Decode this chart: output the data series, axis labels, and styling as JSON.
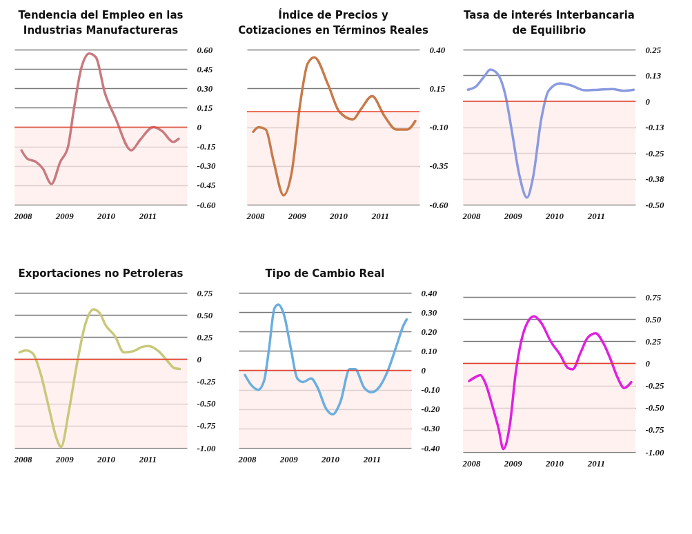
{
  "chart_data": [
    {
      "type": "line",
      "title": "Tendencia del Empleo en las Industrias Manufactureras",
      "x": [
        2007.97,
        2008.11,
        2008.32,
        2008.48,
        2008.69,
        2008.9,
        2009.09,
        2009.22,
        2009.41,
        2009.6,
        2009.76,
        2009.97,
        2010.23,
        2010.61,
        2010.82,
        2011.14,
        2011.35,
        2011.62,
        2011.75
      ],
      "series": [
        {
          "color": "#c97a7f",
          "values": [
            -0.18,
            -0.245,
            -0.27,
            -0.32,
            -0.44,
            -0.27,
            -0.15,
            0.12,
            0.46,
            0.57,
            0.54,
            0.27,
            0.07,
            -0.18,
            -0.1,
            0.0,
            -0.03,
            -0.115,
            -0.09
          ]
        }
      ],
      "xlim": [
        2007.8,
        2011.95
      ],
      "xticks": [
        2008,
        2009,
        2010,
        2011
      ],
      "ylim": [
        -0.6,
        0.6
      ],
      "yticks": [
        {
          "value": 0.6,
          "label": "0.60"
        },
        0.45,
        {
          "value": 0.3,
          "label": "0.30"
        },
        0.15,
        0,
        -0.15,
        {
          "value": -0.3,
          "label": "-0.30"
        },
        -0.45,
        {
          "value": -0.6,
          "label": "-0.60"
        }
      ],
      "grid": "y",
      "ref_lines": [
        {
          "axis": "y",
          "value": 0,
          "color": "#e8402a"
        }
      ],
      "bands": [
        {
          "axis": "y",
          "from": -0.6,
          "to": 0,
          "color": "#fdecea"
        }
      ]
    },
    {
      "type": "line",
      "title": "Índice de Precios y Cotizaciones en Términos Reales",
      "x": [
        2007.95,
        2008.08,
        2008.25,
        2008.44,
        2008.68,
        2008.87,
        2009.09,
        2009.26,
        2009.42,
        2009.75,
        2010.02,
        2010.35,
        2010.54,
        2010.81,
        2011.11,
        2011.39,
        2011.66,
        2011.85
      ],
      "series": [
        {
          "color": "#c77a4a",
          "values": [
            -0.13,
            -0.1,
            -0.115,
            -0.32,
            -0.54,
            -0.4,
            0.07,
            0.31,
            0.35,
            0.175,
            0.0,
            -0.05,
            0.015,
            0.1,
            -0.03,
            -0.115,
            -0.115,
            -0.06
          ]
        }
      ],
      "xlim": [
        2007.8,
        2011.95
      ],
      "xticks": [
        2008,
        2009,
        2010,
        2011
      ],
      "ylim": [
        -0.6,
        0.4
      ],
      "yticks": [
        {
          "value": 0.4,
          "label": "0.40"
        },
        0.15,
        {
          "value": -0.1,
          "label": "-0.10"
        },
        -0.35,
        {
          "value": -0.6,
          "label": "-0.60"
        }
      ],
      "grid": "y",
      "ref_lines": [
        {
          "axis": "y",
          "value": 0,
          "color": "#e8402a"
        }
      ],
      "bands": [
        {
          "axis": "y",
          "from": -0.6,
          "to": 0,
          "color": "#fdecea"
        }
      ]
    },
    {
      "type": "line",
      "title": "Tasa de interés Interbancaria de Equilibrio",
      "x": [
        2007.92,
        2008.11,
        2008.3,
        2008.46,
        2008.63,
        2008.82,
        2008.98,
        2009.15,
        2009.34,
        2009.48,
        2009.69,
        2009.86,
        2010.13,
        2010.4,
        2010.73,
        2011.06,
        2011.39,
        2011.66,
        2011.91
      ],
      "series": [
        {
          "color": "#8a9ae0",
          "values": [
            0.056,
            0.071,
            0.117,
            0.153,
            0.133,
            0.031,
            -0.148,
            -0.35,
            -0.466,
            -0.375,
            -0.08,
            0.051,
            0.087,
            0.077,
            0.053,
            0.056,
            0.059,
            0.051,
            0.056
          ]
        }
      ],
      "xlim": [
        2007.8,
        2011.95
      ],
      "xticks": [
        2008,
        2009,
        2010,
        2011
      ],
      "ylim": [
        -0.5,
        0.25
      ],
      "yticks": [
        0.25,
        {
          "value": 0.125,
          "label": "0.13"
        },
        0,
        {
          "value": -0.125,
          "label": "-0.13"
        },
        -0.25,
        {
          "value": -0.375,
          "label": "-0.38"
        },
        {
          "value": -0.5,
          "label": "-0.50"
        }
      ],
      "grid": "y",
      "ref_lines": [
        {
          "axis": "y",
          "value": 0,
          "color": "#e8402a"
        }
      ],
      "bands": [
        {
          "axis": "y",
          "from": -0.5,
          "to": 0,
          "color": "#fdecea"
        }
      ]
    },
    {
      "type": "line",
      "title": "Exportaciones no Petroleras",
      "x": [
        2007.92,
        2008.08,
        2008.24,
        2008.43,
        2008.62,
        2008.81,
        2008.92,
        2009.11,
        2009.3,
        2009.51,
        2009.7,
        2009.84,
        2010.0,
        2010.22,
        2010.43,
        2010.65,
        2010.86,
        2011.03,
        2011.27,
        2011.46,
        2011.65,
        2011.78
      ],
      "series": [
        {
          "color": "#c8c87a",
          "values": [
            0.078,
            0.1,
            0.066,
            -0.164,
            -0.53,
            -0.89,
            -0.99,
            -0.58,
            -0.06,
            0.405,
            0.563,
            0.527,
            0.38,
            0.26,
            0.078,
            0.09,
            0.138,
            0.15,
            0.09,
            -0.008,
            -0.1,
            -0.11
          ]
        }
      ],
      "xlim": [
        2007.8,
        2011.95
      ],
      "xticks": [
        2008,
        2009,
        2010,
        2011
      ],
      "ylim": [
        -1.0,
        0.75
      ],
      "yticks": [
        0.75,
        {
          "value": 0.5,
          "label": "0.50"
        },
        0.25,
        0,
        -0.25,
        {
          "value": -0.5,
          "label": "-0.50"
        },
        -0.75,
        {
          "value": -1.0,
          "label": "-1.00"
        }
      ],
      "grid": "y",
      "ref_lines": [
        {
          "axis": "y",
          "value": 0,
          "color": "#e8402a"
        }
      ],
      "bands": [
        {
          "axis": "y",
          "from": -1.0,
          "to": 0,
          "color": "#fdecea"
        }
      ]
    },
    {
      "type": "line",
      "title": "Tipo de Cambio Real",
      "x": [
        2007.95,
        2008.11,
        2008.27,
        2008.41,
        2008.52,
        2008.66,
        2008.75,
        2008.89,
        2009.05,
        2009.21,
        2009.35,
        2009.54,
        2009.7,
        2009.9,
        2010.06,
        2010.25,
        2010.47,
        2010.6,
        2010.82,
        2011.0,
        2011.19,
        2011.38,
        2011.6,
        2011.76,
        2011.84
      ],
      "series": [
        {
          "color": "#6aaee0",
          "values": [
            -0.024,
            -0.078,
            -0.1,
            -0.054,
            0.095,
            0.32,
            0.34,
            0.286,
            0.118,
            -0.042,
            -0.06,
            -0.042,
            -0.09,
            -0.197,
            -0.227,
            -0.161,
            0.006,
            0.006,
            -0.09,
            -0.113,
            -0.084,
            -0.006,
            0.129,
            0.23,
            0.263
          ]
        }
      ],
      "xlim": [
        2007.8,
        2011.95
      ],
      "xticks": [
        2008,
        2009,
        2010,
        2011
      ],
      "ylim": [
        -0.4,
        0.4
      ],
      "yticks": [
        {
          "value": 0.4,
          "label": "0.40"
        },
        {
          "value": 0.3,
          "label": "0.30"
        },
        {
          "value": 0.2,
          "label": "0.20"
        },
        {
          "value": 0.1,
          "label": "0.10"
        },
        0,
        {
          "value": -0.1,
          "label": "-0.10"
        },
        {
          "value": -0.2,
          "label": "-0.20"
        },
        {
          "value": -0.3,
          "label": "-0.30"
        },
        {
          "value": -0.4,
          "label": "-0.40"
        }
      ],
      "grid": "y",
      "ref_lines": [
        {
          "axis": "y",
          "value": 0,
          "color": "#e8402a"
        }
      ],
      "bands": [
        {
          "axis": "y",
          "from": -0.4,
          "to": 0,
          "color": "#fdecea"
        }
      ]
    },
    {
      "type": "line",
      "x": [
        2007.95,
        2008.08,
        2008.22,
        2008.33,
        2008.52,
        2008.66,
        2008.77,
        2008.93,
        2009.07,
        2009.21,
        2009.35,
        2009.51,
        2009.68,
        2009.92,
        2010.14,
        2010.33,
        2010.44,
        2010.63,
        2010.8,
        2010.99,
        2011.19,
        2011.35,
        2011.52,
        2011.68,
        2011.85
      ],
      "series": [
        {
          "color": "#e020e0",
          "values": [
            -0.198,
            -0.159,
            -0.132,
            -0.212,
            -0.5,
            -0.74,
            -0.966,
            -0.688,
            -0.106,
            0.266,
            0.46,
            0.533,
            0.46,
            0.242,
            0.097,
            -0.053,
            -0.066,
            0.121,
            0.29,
            0.339,
            0.218,
            0.048,
            -0.159,
            -0.278,
            -0.212
          ]
        }
      ],
      "xlim": [
        2007.8,
        2011.95
      ],
      "xticks": [
        2008,
        2009,
        2010,
        2011
      ],
      "ylim": [
        -1.0,
        0.75
      ],
      "yticks": [
        0.75,
        {
          "value": 0.5,
          "label": "0.50"
        },
        0.25,
        0,
        -0.25,
        {
          "value": -0.5,
          "label": "-0.50"
        },
        -0.75,
        {
          "value": -1.0,
          "label": "-1.00"
        }
      ],
      "grid": "y",
      "ref_lines": [
        {
          "axis": "y",
          "value": 0,
          "color": "#e8402a"
        }
      ],
      "bands": [
        {
          "axis": "y",
          "from": -1.0,
          "to": 0,
          "color": "#fdecea"
        }
      ]
    }
  ]
}
